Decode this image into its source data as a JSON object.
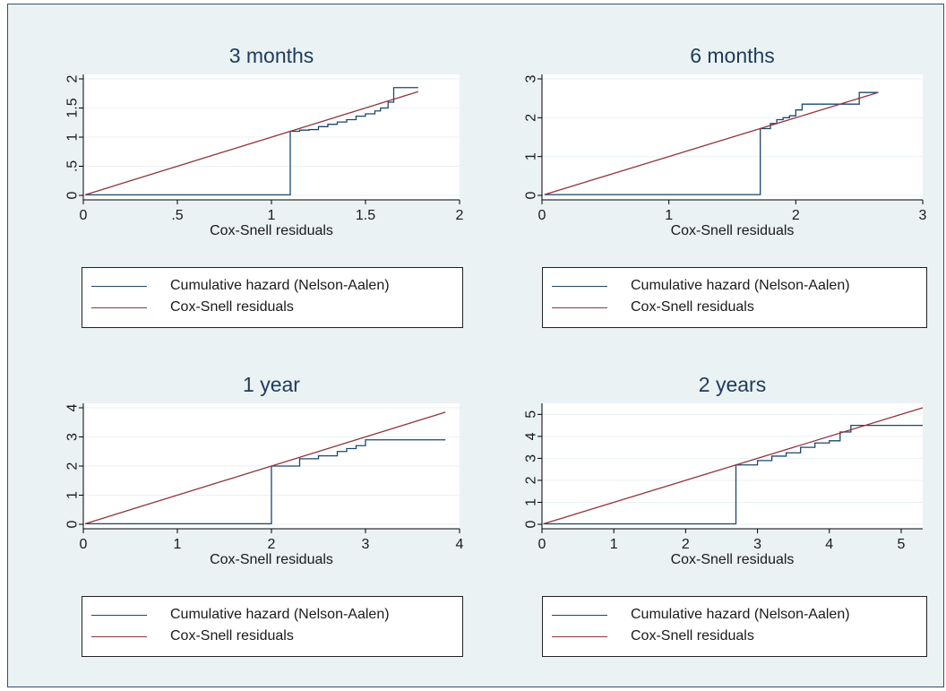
{
  "colors": {
    "background": "#eaf2f3",
    "plot_region": "#ffffff",
    "hazard_line": "#1a476f",
    "reference_line": "#90353b",
    "grid": "#eaf2f3"
  },
  "legend_labels": [
    "Cumulative hazard (Nelson-Aalen)",
    "Cox-Snell residuals"
  ],
  "chart_data": [
    {
      "type": "line",
      "title": "3 months",
      "xlabel": "Cox-Snell residuals",
      "ylabel": "",
      "xlim": [
        0,
        2
      ],
      "ylim": [
        0,
        2
      ],
      "xticks": [
        "0",
        ".5",
        "1",
        "1.5",
        "2"
      ],
      "yticks": [
        "0",
        ".5",
        "1",
        "1.5",
        "2"
      ],
      "grid": true,
      "legend_position": "bottom",
      "series": [
        {
          "name": "Cumulative hazard (Nelson-Aalen)",
          "step": true,
          "x": [
            0.01,
            1.1,
            1.15,
            1.2,
            1.25,
            1.3,
            1.35,
            1.4,
            1.45,
            1.5,
            1.55,
            1.58,
            1.62,
            1.65,
            1.78
          ],
          "y": [
            0.01,
            1.1,
            1.12,
            1.13,
            1.18,
            1.22,
            1.26,
            1.3,
            1.36,
            1.4,
            1.45,
            1.5,
            1.6,
            1.85,
            1.85
          ]
        },
        {
          "name": "Cox-Snell residuals",
          "x": [
            0.01,
            1.78
          ],
          "y": [
            0.01,
            1.78
          ]
        }
      ]
    },
    {
      "type": "line",
      "title": "6 months",
      "xlabel": "Cox-Snell residuals",
      "ylabel": "",
      "xlim": [
        0,
        3
      ],
      "ylim": [
        0,
        3
      ],
      "xticks": [
        "0",
        "1",
        "2",
        "3"
      ],
      "yticks": [
        "0",
        "1",
        "2",
        "3"
      ],
      "grid": true,
      "legend_position": "bottom",
      "series": [
        {
          "name": "Cumulative hazard (Nelson-Aalen)",
          "step": true,
          "x": [
            0.02,
            1.72,
            1.8,
            1.85,
            1.9,
            1.95,
            2.0,
            2.05,
            2.4,
            2.5,
            2.65
          ],
          "y": [
            0.02,
            1.72,
            1.85,
            1.95,
            2.0,
            2.05,
            2.2,
            2.35,
            2.35,
            2.65,
            2.65
          ]
        },
        {
          "name": "Cox-Snell residuals",
          "x": [
            0.02,
            2.65
          ],
          "y": [
            0.02,
            2.65
          ]
        }
      ]
    },
    {
      "type": "line",
      "title": "1 year",
      "xlabel": "Cox-Snell residuals",
      "ylabel": "",
      "xlim": [
        0,
        4
      ],
      "ylim": [
        0,
        4
      ],
      "xticks": [
        "0",
        "1",
        "2",
        "3",
        "4"
      ],
      "yticks": [
        "0",
        "1",
        "2",
        "3",
        "4"
      ],
      "grid": true,
      "legend_position": "bottom",
      "series": [
        {
          "name": "Cumulative hazard (Nelson-Aalen)",
          "step": true,
          "x": [
            0.02,
            2.0,
            2.3,
            2.5,
            2.7,
            2.8,
            2.9,
            3.0,
            3.85
          ],
          "y": [
            0.02,
            2.0,
            2.25,
            2.35,
            2.5,
            2.6,
            2.7,
            2.9,
            2.9
          ]
        },
        {
          "name": "Cox-Snell residuals",
          "x": [
            0.02,
            3.85
          ],
          "y": [
            0.02,
            3.85
          ]
        }
      ]
    },
    {
      "type": "line",
      "title": "2 years",
      "xlabel": "Cox-Snell residuals",
      "ylabel": "",
      "xlim": [
        0,
        5.3
      ],
      "ylim": [
        0,
        5.3
      ],
      "xticks": [
        "0",
        "1",
        "2",
        "3",
        "4",
        "5"
      ],
      "yticks": [
        "0",
        "1",
        "2",
        "3",
        "4",
        "5"
      ],
      "grid": true,
      "legend_position": "bottom",
      "series": [
        {
          "name": "Cumulative hazard (Nelson-Aalen)",
          "step": true,
          "x": [
            0.02,
            2.7,
            3.0,
            3.2,
            3.4,
            3.6,
            3.8,
            4.0,
            4.15,
            4.3,
            5.3
          ],
          "y": [
            0.02,
            2.7,
            2.9,
            3.1,
            3.25,
            3.5,
            3.7,
            3.8,
            4.2,
            4.5,
            4.5
          ]
        },
        {
          "name": "Cox-Snell residuals",
          "x": [
            0.02,
            5.3
          ],
          "y": [
            0.02,
            5.3
          ]
        }
      ]
    }
  ]
}
